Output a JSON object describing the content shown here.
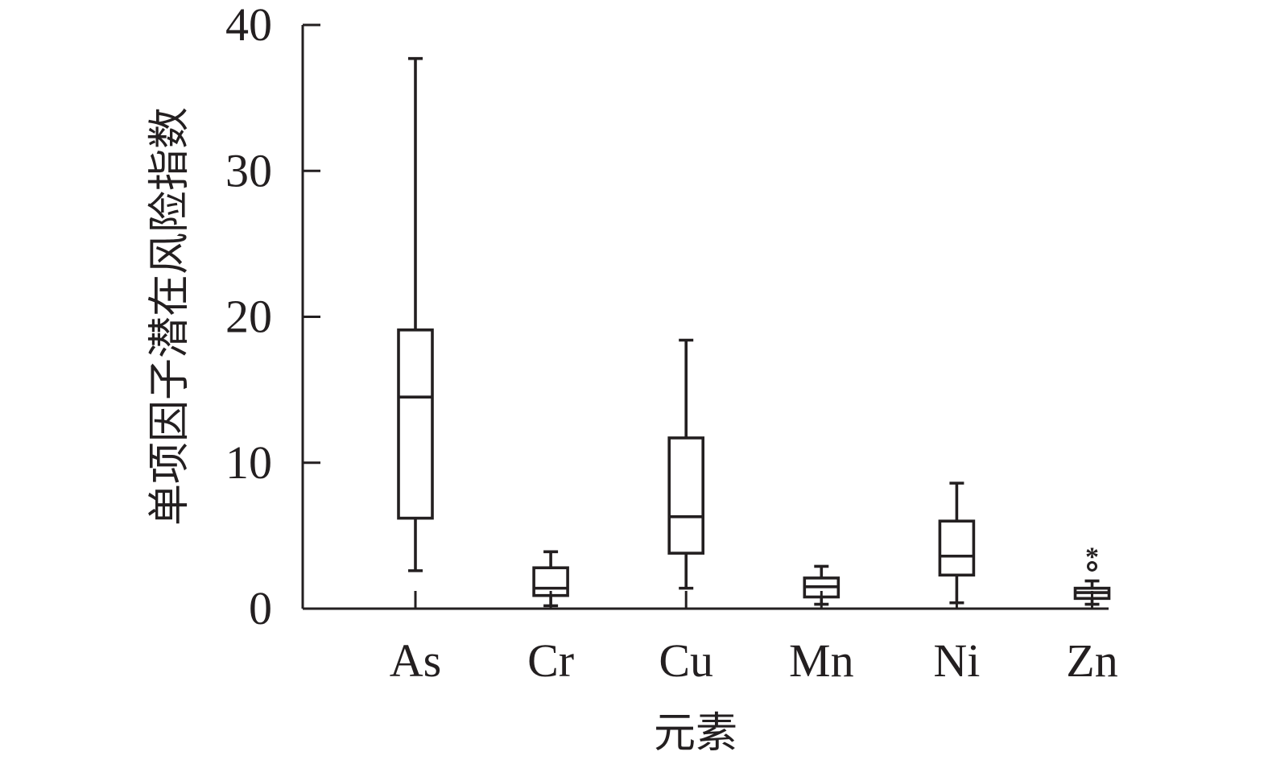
{
  "chart_data": {
    "type": "box",
    "xlabel": "元素",
    "ylabel": "单项因子潜在风险指数",
    "ylim": [
      0,
      40
    ],
    "yticks": [
      "0",
      "10",
      "20",
      "30",
      "40"
    ],
    "categories": [
      "As",
      "Cr",
      "Cu",
      "Mn",
      "Ni",
      "Zn"
    ],
    "boxes": [
      {
        "category": "As",
        "whisker_low": 2.6,
        "q1": 6.2,
        "median": 14.5,
        "q3": 19.1,
        "whisker_high": 37.7,
        "outliers": [],
        "extremes": []
      },
      {
        "category": "Cr",
        "whisker_low": 0.2,
        "q1": 0.9,
        "median": 1.4,
        "q3": 2.8,
        "whisker_high": 3.9,
        "outliers": [],
        "extremes": []
      },
      {
        "category": "Cu",
        "whisker_low": 1.4,
        "q1": 3.8,
        "median": 6.3,
        "q3": 11.7,
        "whisker_high": 18.4,
        "outliers": [],
        "extremes": []
      },
      {
        "category": "Mn",
        "whisker_low": 0.3,
        "q1": 0.8,
        "median": 1.5,
        "q3": 2.1,
        "whisker_high": 2.9,
        "outliers": [],
        "extremes": []
      },
      {
        "category": "Ni",
        "whisker_low": 0.4,
        "q1": 2.3,
        "median": 3.6,
        "q3": 6.0,
        "whisker_high": 8.6,
        "outliers": [],
        "extremes": []
      },
      {
        "category": "Zn",
        "whisker_low": 0.3,
        "q1": 0.7,
        "median": 1.1,
        "q3": 1.4,
        "whisker_high": 1.9,
        "outliers": [
          2.9
        ],
        "extremes": [
          3.9
        ]
      }
    ],
    "grid": false,
    "colors": {
      "axis": "#231f20",
      "box_stroke": "#231f20",
      "box_fill": "#ffffff"
    }
  }
}
